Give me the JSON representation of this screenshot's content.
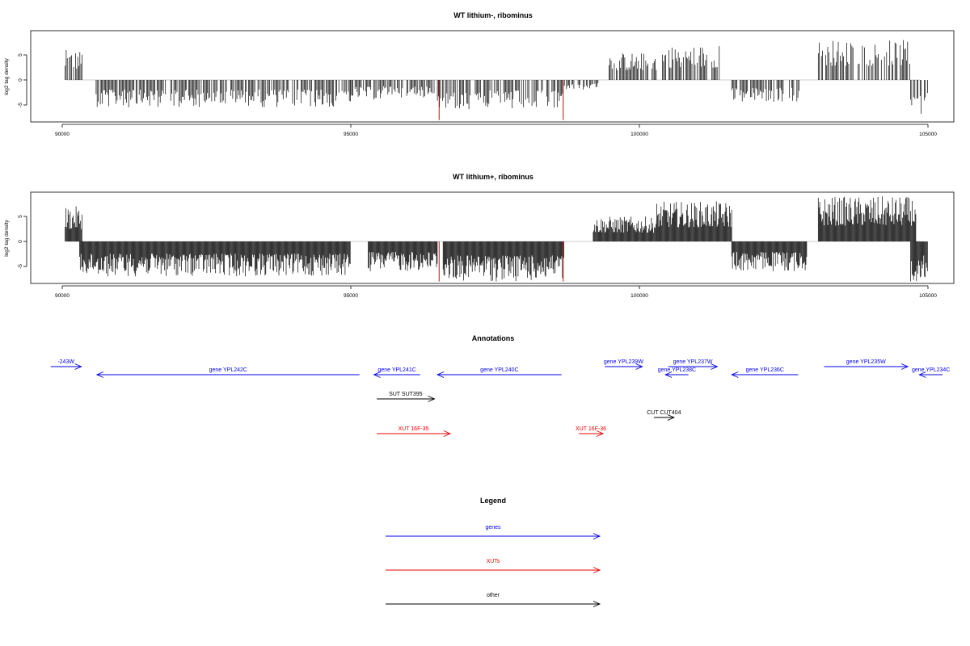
{
  "chart_data": [
    {
      "type": "bar",
      "title": "WT lithium-, ribominus",
      "ylabel": "log2 tag density",
      "xlim": [
        90000,
        105000
      ],
      "ylim": [
        -8.5,
        10
      ],
      "xticks": [
        "90000",
        "95000",
        "100000",
        "105000"
      ],
      "yticks": [
        "-5",
        "0",
        "5"
      ],
      "highlight_color": "#dd0000",
      "segments": [
        {
          "start": 90050,
          "end": 90350,
          "sign": 1,
          "max": 6
        },
        {
          "start": 90550,
          "end": 95000,
          "sign": -1,
          "max": 5.5
        },
        {
          "start": 95000,
          "end": 95550,
          "sign": -1,
          "max": 4
        },
        {
          "start": 95550,
          "end": 96450,
          "sign": -1,
          "max": 3.5
        },
        {
          "start": 96500,
          "end": 98700,
          "sign": -1,
          "max": 6
        },
        {
          "start": 98700,
          "end": 99300,
          "sign": -1,
          "max": 2
        },
        {
          "start": 99400,
          "end": 100300,
          "sign": 1,
          "max": 5.5
        },
        {
          "start": 100400,
          "end": 101400,
          "sign": 1,
          "max": 7
        },
        {
          "start": 101600,
          "end": 102800,
          "sign": -1,
          "max": 4.5
        },
        {
          "start": 103100,
          "end": 104700,
          "sign": 1,
          "max": 8
        },
        {
          "start": 104700,
          "end": 105000,
          "sign": -1,
          "max": 7
        }
      ],
      "highlights": [
        {
          "x": 96530,
          "value": -8
        },
        {
          "x": 98680,
          "value": -8
        }
      ]
    },
    {
      "type": "bar",
      "title": "WT lithium+, ribominus",
      "ylabel": "log2 tag density",
      "xlim": [
        90000,
        105000
      ],
      "ylim": [
        -8.5,
        10
      ],
      "xticks": [
        "90000",
        "95000",
        "100000",
        "105000"
      ],
      "yticks": [
        "-5",
        "0",
        "5"
      ],
      "highlight_color": "#dd0000",
      "segments": [
        {
          "start": 90050,
          "end": 90350,
          "sign": 1,
          "max": 7
        },
        {
          "start": 90300,
          "end": 95000,
          "sign": -1,
          "max": 7
        },
        {
          "start": 95300,
          "end": 96500,
          "sign": -1,
          "max": 6
        },
        {
          "start": 96600,
          "end": 98700,
          "sign": -1,
          "max": 8
        },
        {
          "start": 99200,
          "end": 100300,
          "sign": 1,
          "max": 5
        },
        {
          "start": 100300,
          "end": 101600,
          "sign": 1,
          "max": 8
        },
        {
          "start": 101600,
          "end": 102900,
          "sign": -1,
          "max": 6
        },
        {
          "start": 103100,
          "end": 104800,
          "sign": 1,
          "max": 9
        },
        {
          "start": 104700,
          "end": 105000,
          "sign": -1,
          "max": 8
        }
      ],
      "highlights": [
        {
          "x": 96530,
          "value": -8
        },
        {
          "x": 98680,
          "value": -8
        }
      ]
    },
    {
      "type": "annotation_track",
      "title": "Annotations",
      "xlim": [
        90000,
        105000
      ],
      "features": [
        {
          "label": "-243W",
          "start": 89800,
          "end": 90330,
          "strand": "+",
          "row": 0,
          "type": "gene"
        },
        {
          "label": "gene YPL242C",
          "start": 90600,
          "end": 95150,
          "strand": "-",
          "row": 1,
          "type": "gene"
        },
        {
          "label": "gene YPL241C",
          "start": 95400,
          "end": 96200,
          "strand": "-",
          "row": 1,
          "type": "gene"
        },
        {
          "label": "gene YPL240C",
          "start": 96500,
          "end": 98650,
          "strand": "-",
          "row": 1,
          "type": "gene"
        },
        {
          "label": "gene YPL239W",
          "start": 99400,
          "end": 100050,
          "strand": "+",
          "row": 0,
          "type": "gene"
        },
        {
          "label": "gene YPL238C",
          "start": 100450,
          "end": 100850,
          "strand": "-",
          "row": 1,
          "type": "gene"
        },
        {
          "label": "gene YPL237W",
          "start": 100500,
          "end": 101350,
          "strand": "+",
          "row": 0,
          "type": "gene"
        },
        {
          "label": "gene YPL236C",
          "start": 101600,
          "end": 102750,
          "strand": "-",
          "row": 1,
          "type": "gene"
        },
        {
          "label": "gene YPL235W",
          "start": 103200,
          "end": 104650,
          "strand": "+",
          "row": 0,
          "type": "gene"
        },
        {
          "label": "gene YPL234C",
          "start": 104850,
          "end": 105350,
          "strand": "-",
          "row": 1,
          "type": "gene"
        },
        {
          "label": "SUT SUT395",
          "start": 95450,
          "end": 96450,
          "strand": "+",
          "row": 2,
          "type": "other"
        },
        {
          "label": "CUT CUT404",
          "start": 100250,
          "end": 100600,
          "strand": "+",
          "row": 3,
          "type": "other"
        },
        {
          "label": "XUT 16F-35",
          "start": 95450,
          "end": 96720,
          "strand": "+",
          "row": 4,
          "type": "xut"
        },
        {
          "label": "XUT 16F-36",
          "start": 98950,
          "end": 99370,
          "strand": "+",
          "row": 4,
          "type": "xut"
        }
      ]
    }
  ],
  "legend": {
    "title": "Legend",
    "entries": [
      {
        "label": "genes",
        "color": "#0000ee"
      },
      {
        "label": "XUTs",
        "color": "#ee0000"
      },
      {
        "label": "other",
        "color": "#000000"
      }
    ]
  },
  "colors": {
    "gene": "#0000ee",
    "xut": "#ee0000",
    "other": "#000000",
    "axis": "#000000",
    "baseline": "#bbbbbb"
  }
}
